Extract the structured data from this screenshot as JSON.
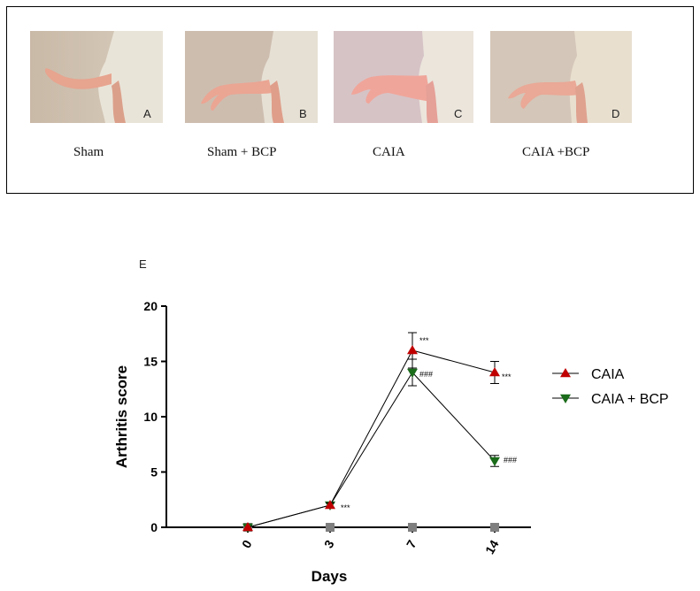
{
  "figure": {
    "photos": [
      {
        "letter": "A",
        "caption": "Sham"
      },
      {
        "letter": "B",
        "caption": "Sham + BCP"
      },
      {
        "letter": "C",
        "caption": "CAIA"
      },
      {
        "letter": "D",
        "caption": "CAIA +BCP"
      }
    ],
    "panel_e_label": "E"
  },
  "chart_data": {
    "type": "line",
    "title": "",
    "xlabel": "Days",
    "ylabel": "Arthritis score",
    "categories": [
      "0",
      "3",
      "7",
      "14"
    ],
    "ylim": [
      0,
      20
    ],
    "yticks": [
      0,
      5,
      10,
      15,
      20
    ],
    "grid": false,
    "legend_position": "right",
    "series": [
      {
        "name": "CAIA",
        "marker": "triangle-up",
        "color": "#c00000",
        "values": [
          0,
          2,
          16,
          14
        ],
        "errors": [
          0,
          0.2,
          1.6,
          1.0
        ],
        "annotations": [
          "",
          "",
          "***",
          "***"
        ]
      },
      {
        "name": "CAIA + BCP",
        "marker": "triangle-down",
        "color": "#1a6b1a",
        "values": [
          0,
          2,
          14,
          6
        ],
        "errors": [
          0,
          0.2,
          1.2,
          0.5
        ],
        "annotations": [
          "",
          "***",
          "###",
          "###"
        ]
      },
      {
        "name": "",
        "marker": "square",
        "color": "#7f7f7f",
        "values": [
          0,
          0,
          0,
          0
        ],
        "errors": [
          0,
          0,
          0,
          0
        ],
        "annotations": [
          "",
          "",
          "",
          ""
        ]
      }
    ]
  }
}
